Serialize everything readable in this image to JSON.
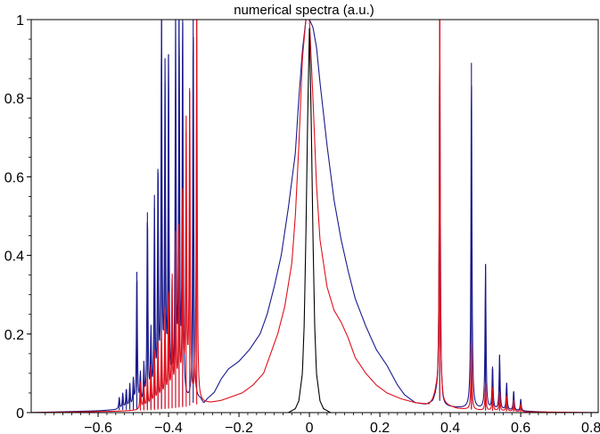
{
  "chart_data": {
    "type": "line",
    "title": "numerical spectra (a.u.)",
    "xlabel": "",
    "ylabel": "",
    "xlim": [
      -0.79,
      0.82
    ],
    "ylim": [
      0,
      1
    ],
    "x_ticks": [
      -0.6,
      -0.4,
      -0.2,
      0,
      0.2,
      0.4,
      0.6,
      0.8
    ],
    "x_tick_labels": [
      "−0.6",
      "−0.4",
      "−0.2",
      "0",
      "0.2",
      "0.4",
      "0.6",
      "0.8"
    ],
    "y_ticks": [
      0,
      0.2,
      0.4,
      0.6,
      0.8,
      1
    ],
    "y_tick_labels": [
      "0",
      "0.2",
      "0.4",
      "0.6",
      "0.8",
      "1"
    ],
    "grid": false,
    "legend": "none",
    "series": [
      {
        "color": "#1a1a8c",
        "background": [
          [
            -0.79,
            0.0
          ],
          [
            -0.6,
            0.004
          ],
          [
            -0.5,
            0.008
          ],
          [
            -0.4,
            0.012
          ],
          [
            -0.35,
            0.018
          ],
          [
            -0.33,
            0.025
          ],
          [
            -0.31,
            0.03
          ],
          [
            -0.3,
            0.02
          ],
          [
            -0.29,
            0.032
          ],
          [
            -0.27,
            0.05
          ],
          [
            -0.25,
            0.085
          ],
          [
            -0.23,
            0.11
          ],
          [
            -0.2,
            0.13
          ],
          [
            -0.17,
            0.16
          ],
          [
            -0.14,
            0.2
          ],
          [
            -0.12,
            0.25
          ],
          [
            -0.1,
            0.32
          ],
          [
            -0.08,
            0.4
          ],
          [
            -0.06,
            0.52
          ],
          [
            -0.04,
            0.66
          ],
          [
            -0.03,
            0.8
          ],
          [
            -0.02,
            0.92
          ],
          [
            -0.01,
            1.0
          ],
          [
            0.0,
            1.0
          ],
          [
            0.01,
            0.98
          ],
          [
            0.02,
            0.93
          ],
          [
            0.03,
            0.84
          ],
          [
            0.05,
            0.68
          ],
          [
            0.07,
            0.54
          ],
          [
            0.09,
            0.44
          ],
          [
            0.11,
            0.36
          ],
          [
            0.13,
            0.29
          ],
          [
            0.16,
            0.22
          ],
          [
            0.19,
            0.16
          ],
          [
            0.22,
            0.12
          ],
          [
            0.25,
            0.07
          ],
          [
            0.27,
            0.045
          ],
          [
            0.3,
            0.025
          ],
          [
            0.33,
            0.02
          ],
          [
            0.35,
            0.025
          ],
          [
            0.36,
            0.04
          ],
          [
            0.37,
            0.03
          ],
          [
            0.38,
            0.015
          ],
          [
            0.42,
            0.012
          ],
          [
            0.5,
            0.008
          ],
          [
            0.6,
            0.004
          ],
          [
            0.7,
            0.0
          ],
          [
            0.82,
            0.0
          ]
        ],
        "peaks": [
          [
            -0.54,
            0.03
          ],
          [
            -0.53,
            0.04
          ],
          [
            -0.52,
            0.05
          ],
          [
            -0.51,
            0.06
          ],
          [
            -0.5,
            0.07
          ],
          [
            -0.49,
            0.35
          ],
          [
            -0.48,
            0.08
          ],
          [
            -0.47,
            0.1
          ],
          [
            -0.46,
            0.5
          ],
          [
            -0.45,
            0.18
          ],
          [
            -0.44,
            0.51
          ],
          [
            -0.43,
            0.6
          ],
          [
            -0.42,
            1.0
          ],
          [
            -0.41,
            0.83
          ],
          [
            -0.4,
            0.9
          ],
          [
            -0.39,
            0.12
          ],
          [
            -0.38,
            1.0
          ],
          [
            -0.37,
            1.0
          ],
          [
            -0.36,
            1.0
          ],
          [
            -0.33,
            1.0
          ],
          [
            0.37,
            1.0
          ],
          [
            0.46,
            0.88
          ],
          [
            0.5,
            0.37
          ],
          [
            0.52,
            0.11
          ],
          [
            0.54,
            0.14
          ],
          [
            0.56,
            0.07
          ],
          [
            0.58,
            0.05
          ],
          [
            0.6,
            0.03
          ]
        ]
      },
      {
        "color": "#e0101c",
        "background": [
          [
            -0.79,
            0.0
          ],
          [
            -0.55,
            0.003
          ],
          [
            -0.45,
            0.006
          ],
          [
            -0.4,
            0.01
          ],
          [
            -0.35,
            0.015
          ],
          [
            -0.33,
            0.02
          ],
          [
            -0.31,
            0.022
          ],
          [
            -0.28,
            0.024
          ],
          [
            -0.25,
            0.03
          ],
          [
            -0.22,
            0.04
          ],
          [
            -0.19,
            0.05
          ],
          [
            -0.16,
            0.07
          ],
          [
            -0.13,
            0.1
          ],
          [
            -0.11,
            0.15
          ],
          [
            -0.09,
            0.2
          ],
          [
            -0.07,
            0.27
          ],
          [
            -0.05,
            0.38
          ],
          [
            -0.04,
            0.5
          ],
          [
            -0.03,
            0.68
          ],
          [
            -0.02,
            0.9
          ],
          [
            -0.01,
            1.0
          ],
          [
            0.0,
            1.0
          ],
          [
            0.01,
            0.8
          ],
          [
            0.02,
            0.58
          ],
          [
            0.03,
            0.44
          ],
          [
            0.05,
            0.32
          ],
          [
            0.07,
            0.26
          ],
          [
            0.09,
            0.23
          ],
          [
            0.11,
            0.19
          ],
          [
            0.13,
            0.14
          ],
          [
            0.16,
            0.1
          ],
          [
            0.19,
            0.07
          ],
          [
            0.22,
            0.05
          ],
          [
            0.26,
            0.035
          ],
          [
            0.3,
            0.025
          ],
          [
            0.34,
            0.02
          ],
          [
            0.35,
            0.03
          ],
          [
            0.36,
            0.05
          ],
          [
            0.38,
            0.02
          ],
          [
            0.42,
            0.01
          ],
          [
            0.5,
            0.005
          ],
          [
            0.6,
            0.002
          ],
          [
            0.82,
            0.0
          ]
        ],
        "peaks": [
          [
            -0.48,
            0.07
          ],
          [
            -0.47,
            0.06
          ],
          [
            -0.46,
            0.08
          ],
          [
            -0.45,
            0.11
          ],
          [
            -0.44,
            0.14
          ],
          [
            -0.43,
            0.17
          ],
          [
            -0.42,
            0.19
          ],
          [
            -0.41,
            0.24
          ],
          [
            -0.4,
            0.29
          ],
          [
            -0.39,
            0.33
          ],
          [
            -0.38,
            0.42
          ],
          [
            -0.37,
            0.45
          ],
          [
            -0.36,
            0.55
          ],
          [
            -0.35,
            0.7
          ],
          [
            -0.34,
            0.8
          ],
          [
            -0.32,
            1.0
          ],
          [
            0.37,
            1.0
          ],
          [
            0.46,
            0.17
          ],
          [
            0.5,
            0.07
          ],
          [
            0.52,
            0.06
          ],
          [
            0.54,
            0.05
          ],
          [
            0.56,
            0.04
          ],
          [
            0.58,
            0.03
          ],
          [
            0.6,
            0.02
          ]
        ]
      },
      {
        "color": "#000000",
        "background": [
          [
            -0.79,
            0.0
          ],
          [
            -0.06,
            0.0
          ],
          [
            -0.04,
            0.01
          ],
          [
            -0.03,
            0.03
          ],
          [
            -0.02,
            0.1
          ],
          [
            -0.015,
            0.22
          ],
          [
            -0.01,
            0.45
          ],
          [
            -0.005,
            0.75
          ],
          [
            0.0,
            0.98
          ],
          [
            0.005,
            0.75
          ],
          [
            0.01,
            0.45
          ],
          [
            0.015,
            0.22
          ],
          [
            0.02,
            0.1
          ],
          [
            0.03,
            0.03
          ],
          [
            0.04,
            0.01
          ],
          [
            0.06,
            0.0
          ],
          [
            0.82,
            0.0
          ]
        ],
        "peaks": []
      }
    ]
  }
}
